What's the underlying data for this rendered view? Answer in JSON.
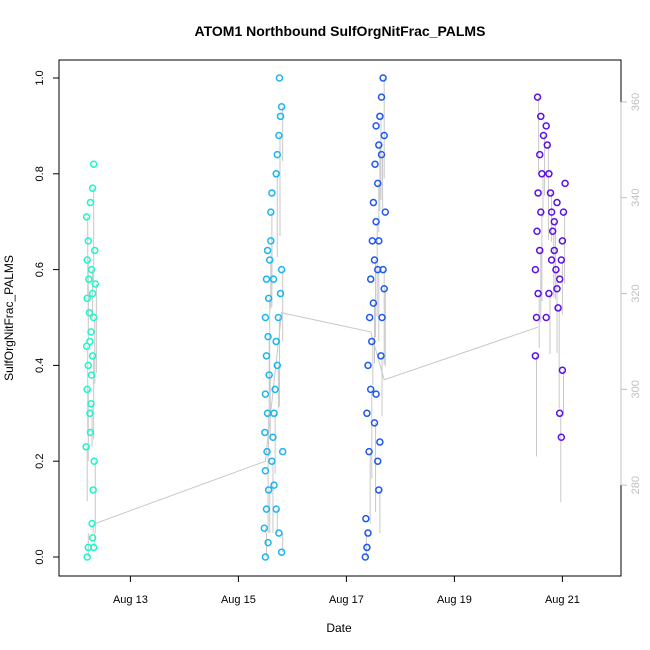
{
  "chart_data": {
    "type": "scatter",
    "title": "ATOM1 Northbound SulfOrgNitFrac_PALMS",
    "xlabel": "Date",
    "ylabel": "SulfOrgNitFrac_PALMS",
    "x_unit": "days since Aug 12 00:00",
    "xlim": [
      -0.1,
      9.9
    ],
    "ylim": [
      0,
      1
    ],
    "x_ticks": [
      {
        "value": 1,
        "label": "Aug 13"
      },
      {
        "value": 3,
        "label": "Aug 15"
      },
      {
        "value": 5,
        "label": "Aug 17"
      },
      {
        "value": 7,
        "label": "Aug 19"
      },
      {
        "value": 9,
        "label": "Aug 21"
      }
    ],
    "y_ticks": [
      {
        "value": 0.0,
        "label": "0.0"
      },
      {
        "value": 0.2,
        "label": "0.2"
      },
      {
        "value": 0.4,
        "label": "0.4"
      },
      {
        "value": 0.6,
        "label": "0.6"
      },
      {
        "value": 0.8,
        "label": "0.8"
      },
      {
        "value": 1.0,
        "label": "1.0"
      }
    ],
    "y2lim": [
      265,
      365
    ],
    "y2_ticks": [
      {
        "value": 280,
        "label": "280"
      },
      {
        "value": 300,
        "label": "300"
      },
      {
        "value": 320,
        "label": "320"
      },
      {
        "value": 340,
        "label": "340"
      },
      {
        "value": 360,
        "label": "360"
      }
    ],
    "grid": false,
    "series": [
      {
        "color": "#1df7c8",
        "points": [
          [
            0.2,
            0.0
          ],
          [
            0.22,
            0.02
          ],
          [
            0.18,
            0.23
          ],
          [
            0.25,
            0.3
          ],
          [
            0.2,
            0.35
          ],
          [
            0.22,
            0.4
          ],
          [
            0.19,
            0.44
          ],
          [
            0.24,
            0.51
          ],
          [
            0.2,
            0.54
          ],
          [
            0.23,
            0.58
          ],
          [
            0.2,
            0.62
          ],
          [
            0.22,
            0.66
          ],
          [
            0.19,
            0.71
          ],
          [
            0.26,
            0.74
          ],
          [
            0.3,
            0.77
          ],
          [
            0.32,
            0.82
          ],
          [
            0.28,
            0.6
          ],
          [
            0.3,
            0.55
          ],
          [
            0.32,
            0.5
          ],
          [
            0.27,
            0.47
          ],
          [
            0.3,
            0.42
          ],
          [
            0.28,
            0.38
          ],
          [
            0.33,
            0.2
          ],
          [
            0.31,
            0.14
          ],
          [
            0.29,
            0.07
          ],
          [
            0.3,
            0.04
          ],
          [
            0.32,
            0.02
          ],
          [
            0.25,
            0.45
          ],
          [
            0.35,
            0.57
          ],
          [
            0.34,
            0.64
          ],
          [
            0.27,
            0.32
          ],
          [
            0.26,
            0.26
          ]
        ]
      },
      {
        "color": "#19b6f0",
        "points": [
          [
            3.5,
            0.0
          ],
          [
            3.55,
            0.03
          ],
          [
            3.48,
            0.06
          ],
          [
            3.52,
            0.1
          ],
          [
            3.56,
            0.14
          ],
          [
            3.5,
            0.18
          ],
          [
            3.53,
            0.22
          ],
          [
            3.49,
            0.26
          ],
          [
            3.54,
            0.3
          ],
          [
            3.5,
            0.34
          ],
          [
            3.57,
            0.38
          ],
          [
            3.52,
            0.42
          ],
          [
            3.55,
            0.46
          ],
          [
            3.5,
            0.5
          ],
          [
            3.56,
            0.54
          ],
          [
            3.52,
            0.58
          ],
          [
            3.58,
            0.62
          ],
          [
            3.54,
            0.64
          ],
          [
            3.6,
            0.72
          ],
          [
            3.62,
            0.76
          ],
          [
            3.7,
            0.8
          ],
          [
            3.72,
            0.84
          ],
          [
            3.75,
            0.88
          ],
          [
            3.78,
            0.92
          ],
          [
            3.8,
            0.94
          ],
          [
            3.76,
            1.0
          ],
          [
            3.8,
            0.6
          ],
          [
            3.78,
            0.55
          ],
          [
            3.74,
            0.5
          ],
          [
            3.7,
            0.45
          ],
          [
            3.72,
            0.4
          ],
          [
            3.68,
            0.35
          ],
          [
            3.66,
            0.3
          ],
          [
            3.64,
            0.25
          ],
          [
            3.62,
            0.2
          ],
          [
            3.66,
            0.15
          ],
          [
            3.7,
            0.1
          ],
          [
            3.75,
            0.05
          ],
          [
            3.8,
            0.01
          ],
          [
            3.82,
            0.22
          ],
          [
            3.6,
            0.66
          ],
          [
            3.65,
            0.58
          ]
        ]
      },
      {
        "color": "#1f58ee",
        "points": [
          [
            5.35,
            0.0
          ],
          [
            5.38,
            0.02
          ],
          [
            5.4,
            0.05
          ],
          [
            5.36,
            0.08
          ],
          [
            5.42,
            0.22
          ],
          [
            5.38,
            0.3
          ],
          [
            5.45,
            0.35
          ],
          [
            5.4,
            0.4
          ],
          [
            5.47,
            0.45
          ],
          [
            5.43,
            0.5
          ],
          [
            5.5,
            0.53
          ],
          [
            5.45,
            0.58
          ],
          [
            5.52,
            0.62
          ],
          [
            5.48,
            0.66
          ],
          [
            5.55,
            0.7
          ],
          [
            5.5,
            0.74
          ],
          [
            5.58,
            0.78
          ],
          [
            5.53,
            0.82
          ],
          [
            5.6,
            0.86
          ],
          [
            5.55,
            0.9
          ],
          [
            5.62,
            0.92
          ],
          [
            5.65,
            0.96
          ],
          [
            5.68,
            1.0
          ],
          [
            5.7,
            0.88
          ],
          [
            5.65,
            0.84
          ],
          [
            5.6,
            0.66
          ],
          [
            5.58,
            0.6
          ],
          [
            5.55,
            0.34
          ],
          [
            5.52,
            0.28
          ],
          [
            5.58,
            0.2
          ],
          [
            5.6,
            0.14
          ],
          [
            5.62,
            0.24
          ],
          [
            5.64,
            0.42
          ],
          [
            5.66,
            0.5
          ],
          [
            5.7,
            0.56
          ],
          [
            5.72,
            0.72
          ],
          [
            5.68,
            0.6
          ]
        ]
      },
      {
        "color": "#5a10e8",
        "points": [
          [
            8.5,
            0.42
          ],
          [
            8.52,
            0.5
          ],
          [
            8.55,
            0.55
          ],
          [
            8.5,
            0.6
          ],
          [
            8.58,
            0.64
          ],
          [
            8.53,
            0.68
          ],
          [
            8.6,
            0.72
          ],
          [
            8.55,
            0.76
          ],
          [
            8.62,
            0.8
          ],
          [
            8.58,
            0.84
          ],
          [
            8.65,
            0.88
          ],
          [
            8.6,
            0.92
          ],
          [
            8.54,
            0.96
          ],
          [
            8.7,
            0.9
          ],
          [
            8.72,
            0.86
          ],
          [
            8.75,
            0.8
          ],
          [
            8.78,
            0.76
          ],
          [
            8.8,
            0.72
          ],
          [
            8.82,
            0.68
          ],
          [
            8.85,
            0.64
          ],
          [
            8.88,
            0.6
          ],
          [
            8.9,
            0.56
          ],
          [
            8.92,
            0.52
          ],
          [
            8.95,
            0.58
          ],
          [
            8.98,
            0.62
          ],
          [
            9.0,
            0.66
          ],
          [
            9.02,
            0.72
          ],
          [
            9.05,
            0.78
          ],
          [
            8.95,
            0.3
          ],
          [
            8.98,
            0.25
          ],
          [
            9.0,
            0.39
          ],
          [
            8.7,
            0.5
          ],
          [
            8.75,
            0.55
          ],
          [
            8.8,
            0.62
          ],
          [
            8.85,
            0.7
          ],
          [
            8.9,
            0.74
          ]
        ]
      }
    ]
  }
}
